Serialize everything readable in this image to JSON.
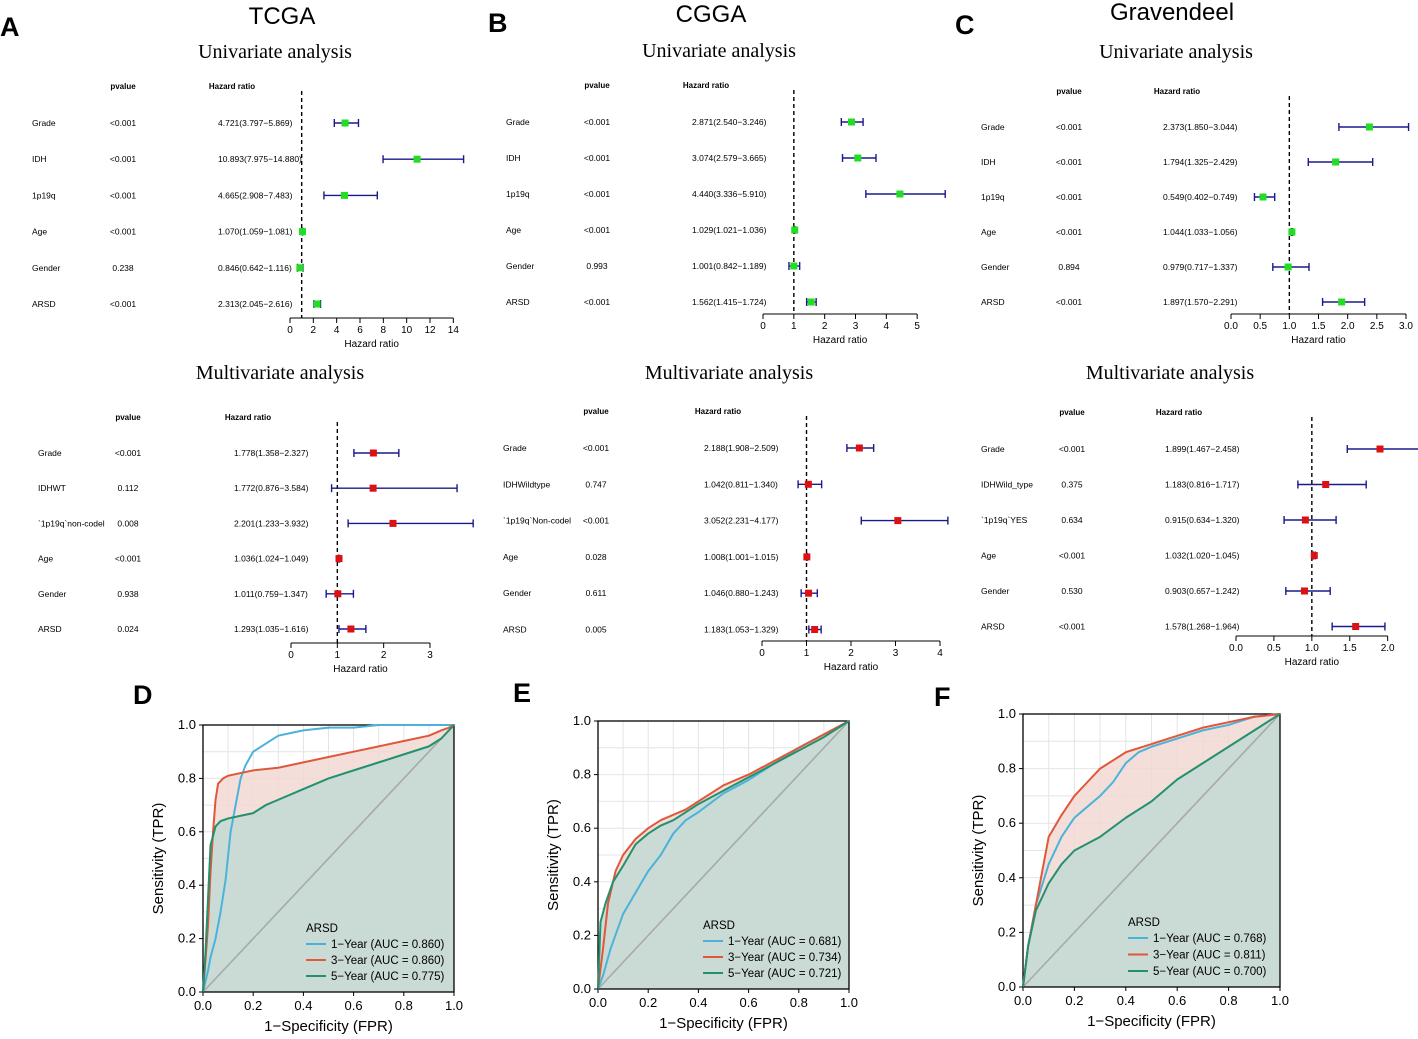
{
  "panel_letters": [
    "A",
    "B",
    "C",
    "D",
    "E",
    "F"
  ],
  "cohorts": [
    "TCGA",
    "CGGA",
    "Gravendeel"
  ],
  "section_titles": {
    "uni": "Univariate analysis",
    "multi": "Multivariate analysis"
  },
  "table_headers": {
    "pvalue": "pvalue",
    "hr": "Hazard ratio"
  },
  "axis_label": "Hazard ratio",
  "colors": {
    "uni_marker": "#22dd22",
    "multi_marker": "#dd1111",
    "ci": "#1a1a8c",
    "roc_fill": "#c5d9d4",
    "roc_band": "#f2d8d4"
  },
  "chart_data": [
    {
      "type": "forest",
      "panel": "A",
      "cohort": "TCGA",
      "analysis": "Univariate analysis",
      "xlabel": "Hazard ratio",
      "xlim": [
        0,
        15
      ],
      "xticks": [
        0,
        2,
        4,
        6,
        8,
        10,
        12,
        14
      ],
      "ref": 1,
      "rows": [
        {
          "label": "Grade",
          "p": "<0.001",
          "hr_text": "4.721(3.797−5.869)",
          "hr": 4.721,
          "lo": 3.797,
          "hi": 5.869
        },
        {
          "label": "IDH",
          "p": "<0.001",
          "hr_text": "10.893(7.975−14.880)",
          "hr": 10.893,
          "lo": 7.975,
          "hi": 14.88
        },
        {
          "label": "1p19q",
          "p": "<0.001",
          "hr_text": "4.665(2.908−7.483)",
          "hr": 4.665,
          "lo": 2.908,
          "hi": 7.483
        },
        {
          "label": "Age",
          "p": "<0.001",
          "hr_text": "1.070(1.059−1.081)",
          "hr": 1.07,
          "lo": 1.059,
          "hi": 1.081
        },
        {
          "label": "Gender",
          "p": "0.238",
          "hr_text": "0.846(0.642−1.116)",
          "hr": 0.846,
          "lo": 0.642,
          "hi": 1.116
        },
        {
          "label": "ARSD",
          "p": "<0.001",
          "hr_text": "2.313(2.045−2.616)",
          "hr": 2.313,
          "lo": 2.045,
          "hi": 2.616
        }
      ]
    },
    {
      "type": "forest",
      "panel": "B",
      "cohort": "CGGA",
      "analysis": "Univariate analysis",
      "xlabel": "Hazard ratio",
      "xlim": [
        0,
        6
      ],
      "xticks": [
        0,
        1,
        2,
        3,
        4,
        5
      ],
      "ref": 1,
      "rows": [
        {
          "label": "Grade",
          "p": "<0.001",
          "hr_text": "2.871(2.540−3.246)",
          "hr": 2.871,
          "lo": 2.54,
          "hi": 3.246
        },
        {
          "label": "IDH",
          "p": "<0.001",
          "hr_text": "3.074(2.579−3.665)",
          "hr": 3.074,
          "lo": 2.579,
          "hi": 3.665
        },
        {
          "label": "1p19q",
          "p": "<0.001",
          "hr_text": "4.440(3.336−5.910)",
          "hr": 4.44,
          "lo": 3.336,
          "hi": 5.91
        },
        {
          "label": "Age",
          "p": "<0.001",
          "hr_text": "1.029(1.021−1.036)",
          "hr": 1.029,
          "lo": 1.021,
          "hi": 1.036
        },
        {
          "label": "Gender",
          "p": "0.993",
          "hr_text": "1.001(0.842−1.189)",
          "hr": 1.001,
          "lo": 0.842,
          "hi": 1.189
        },
        {
          "label": "ARSD",
          "p": "<0.001",
          "hr_text": "1.562(1.415−1.724)",
          "hr": 1.562,
          "lo": 1.415,
          "hi": 1.724
        }
      ]
    },
    {
      "type": "forest",
      "panel": "C",
      "cohort": "Gravendeel",
      "analysis": "Univariate analysis",
      "xlabel": "Hazard ratio",
      "xlim": [
        0,
        3
      ],
      "xticks": [
        0,
        0.5,
        1,
        1.5,
        2,
        2.5,
        3
      ],
      "xtick_labels": [
        "0.0",
        "0.5",
        "1.0",
        "1.5",
        "2.0",
        "2.5",
        "3.0"
      ],
      "ref": 1,
      "rows": [
        {
          "label": "Grade",
          "p": "<0.001",
          "hr_text": "2.373(1.850−3.044)",
          "hr": 2.373,
          "lo": 1.85,
          "hi": 3.044
        },
        {
          "label": "IDH",
          "p": "<0.001",
          "hr_text": "1.794(1.325−2.429)",
          "hr": 1.794,
          "lo": 1.325,
          "hi": 2.429
        },
        {
          "label": "1p19q",
          "p": "<0.001",
          "hr_text": "0.549(0.402−0.749)",
          "hr": 0.549,
          "lo": 0.402,
          "hi": 0.749
        },
        {
          "label": "Age",
          "p": "<0.001",
          "hr_text": "1.044(1.033−1.056)",
          "hr": 1.044,
          "lo": 1.033,
          "hi": 1.056
        },
        {
          "label": "Gender",
          "p": "0.894",
          "hr_text": "0.979(0.717−1.337)",
          "hr": 0.979,
          "lo": 0.717,
          "hi": 1.337
        },
        {
          "label": "ARSD",
          "p": "<0.001",
          "hr_text": "1.897(1.570−2.291)",
          "hr": 1.897,
          "lo": 1.57,
          "hi": 2.291
        }
      ]
    },
    {
      "type": "forest",
      "panel": "A",
      "cohort": "TCGA",
      "analysis": "Multivariate analysis",
      "xlabel": "Hazard ratio",
      "xlim": [
        0,
        3
      ],
      "xticks": [
        0,
        1,
        2,
        3
      ],
      "ref": 1,
      "rows": [
        {
          "label": "Grade",
          "p": "<0.001",
          "hr_text": "1.778(1.358−2.327)",
          "hr": 1.778,
          "lo": 1.358,
          "hi": 2.327
        },
        {
          "label": "IDHWT",
          "p": "0.112",
          "hr_text": "1.772(0.876−3.584)",
          "hr": 1.772,
          "lo": 0.876,
          "hi": 3.584
        },
        {
          "label": "`1p19q`non-codel",
          "p": "0.008",
          "hr_text": "2.201(1.233−3.932)",
          "hr": 2.201,
          "lo": 1.233,
          "hi": 3.932
        },
        {
          "label": "Age",
          "p": "<0.001",
          "hr_text": "1.036(1.024−1.049)",
          "hr": 1.036,
          "lo": 1.024,
          "hi": 1.049
        },
        {
          "label": "Gender",
          "p": "0.938",
          "hr_text": "1.011(0.759−1.347)",
          "hr": 1.011,
          "lo": 0.759,
          "hi": 1.347
        },
        {
          "label": "ARSD",
          "p": "0.024",
          "hr_text": "1.293(1.035−1.616)",
          "hr": 1.293,
          "lo": 1.035,
          "hi": 1.616
        }
      ]
    },
    {
      "type": "forest",
      "panel": "B",
      "cohort": "CGGA",
      "analysis": "Multivariate analysis",
      "xlabel": "Hazard ratio",
      "xlim": [
        0,
        4
      ],
      "xticks": [
        0,
        1,
        2,
        3,
        4
      ],
      "ref": 1,
      "rows": [
        {
          "label": "Grade",
          "p": "<0.001",
          "hr_text": "2.188(1.908−2.509)",
          "hr": 2.188,
          "lo": 1.908,
          "hi": 2.509
        },
        {
          "label": "IDHWildtype",
          "p": "0.747",
          "hr_text": "1.042(0.811−1.340)",
          "hr": 1.042,
          "lo": 0.811,
          "hi": 1.34
        },
        {
          "label": "`1p19q`Non-codel",
          "p": "<0.001",
          "hr_text": "3.052(2.231−4.177)",
          "hr": 3.052,
          "lo": 2.231,
          "hi": 4.177
        },
        {
          "label": "Age",
          "p": "0.028",
          "hr_text": "1.008(1.001−1.015)",
          "hr": 1.008,
          "lo": 1.001,
          "hi": 1.015
        },
        {
          "label": "Gender",
          "p": "0.611",
          "hr_text": "1.046(0.880−1.243)",
          "hr": 1.046,
          "lo": 0.88,
          "hi": 1.243
        },
        {
          "label": "ARSD",
          "p": "0.005",
          "hr_text": "1.183(1.053−1.329)",
          "hr": 1.183,
          "lo": 1.053,
          "hi": 1.329
        }
      ]
    },
    {
      "type": "forest",
      "panel": "C",
      "cohort": "Gravendeel",
      "analysis": "Multivariate analysis",
      "xlabel": "Hazard ratio",
      "xlim": [
        0,
        2.4
      ],
      "xticks": [
        0,
        0.5,
        1,
        1.5,
        2
      ],
      "xtick_labels": [
        "0.0",
        "0.5",
        "1.0",
        "1.5",
        "2.0"
      ],
      "ref": 1,
      "rows": [
        {
          "label": "Grade",
          "p": "<0.001",
          "hr_text": "1.899(1.467−2.458)",
          "hr": 1.899,
          "lo": 1.467,
          "hi": 2.458
        },
        {
          "label": "IDHWild_type",
          "p": "0.375",
          "hr_text": "1.183(0.816−1.717)",
          "hr": 1.183,
          "lo": 0.816,
          "hi": 1.717
        },
        {
          "label": "`1p19q`YES",
          "p": "0.634",
          "hr_text": "0.915(0.634−1.320)",
          "hr": 0.915,
          "lo": 0.634,
          "hi": 1.32
        },
        {
          "label": "Age",
          "p": "<0.001",
          "hr_text": "1.032(1.020−1.045)",
          "hr": 1.032,
          "lo": 1.02,
          "hi": 1.045
        },
        {
          "label": "Gender",
          "p": "0.530",
          "hr_text": "0.903(0.657−1.242)",
          "hr": 0.903,
          "lo": 0.657,
          "hi": 1.242
        },
        {
          "label": "ARSD",
          "p": "<0.001",
          "hr_text": "1.578(1.268−1.964)",
          "hr": 1.578,
          "lo": 1.268,
          "hi": 1.964
        }
      ]
    },
    {
      "type": "roc",
      "panel": "D",
      "cohort": "TCGA",
      "xlabel": "1−Specificity (FPR)",
      "ylabel": "Sensitivity (TPR)",
      "xlim": [
        0,
        1
      ],
      "ylim": [
        0,
        1
      ],
      "ticks": [
        "0.0",
        "0.2",
        "0.4",
        "0.6",
        "0.8",
        "1.0"
      ],
      "legend_title": "ARSD",
      "series": [
        {
          "name": "1−Year (AUC = 0.860)",
          "color": "#4bb3d9",
          "x": [
            0,
            0.01,
            0.02,
            0.03,
            0.05,
            0.07,
            0.09,
            0.11,
            0.13,
            0.15,
            0.17,
            0.2,
            0.25,
            0.3,
            0.35,
            0.4,
            0.5,
            0.6,
            0.7,
            0.8,
            0.9,
            0.95,
            0.98,
            1
          ],
          "y": [
            0,
            0.04,
            0.08,
            0.13,
            0.2,
            0.3,
            0.42,
            0.6,
            0.7,
            0.8,
            0.85,
            0.9,
            0.93,
            0.96,
            0.97,
            0.98,
            0.99,
            0.99,
            1,
            1,
            1,
            1,
            1,
            1
          ]
        },
        {
          "name": "3−Year (AUC = 0.860)",
          "color": "#e0573a",
          "x": [
            0,
            0.01,
            0.02,
            0.03,
            0.04,
            0.05,
            0.06,
            0.08,
            0.1,
            0.15,
            0.2,
            0.3,
            0.4,
            0.5,
            0.6,
            0.7,
            0.8,
            0.9,
            0.95,
            0.98,
            1
          ],
          "y": [
            0,
            0.12,
            0.25,
            0.45,
            0.6,
            0.72,
            0.78,
            0.8,
            0.81,
            0.82,
            0.83,
            0.84,
            0.86,
            0.88,
            0.9,
            0.92,
            0.94,
            0.96,
            0.98,
            0.99,
            1
          ]
        },
        {
          "name": "5−Year (AUC = 0.775)",
          "color": "#23906e",
          "x": [
            0,
            0.01,
            0.02,
            0.03,
            0.05,
            0.07,
            0.1,
            0.15,
            0.2,
            0.25,
            0.3,
            0.4,
            0.5,
            0.6,
            0.7,
            0.8,
            0.9,
            0.95,
            1
          ],
          "y": [
            0,
            0.15,
            0.35,
            0.55,
            0.62,
            0.64,
            0.65,
            0.66,
            0.67,
            0.7,
            0.72,
            0.76,
            0.8,
            0.83,
            0.86,
            0.89,
            0.92,
            0.95,
            1
          ]
        }
      ]
    },
    {
      "type": "roc",
      "panel": "E",
      "cohort": "CGGA",
      "xlabel": "1−Specificity (FPR)",
      "ylabel": "Sensitivity (TPR)",
      "xlim": [
        0,
        1
      ],
      "ylim": [
        0,
        1
      ],
      "ticks": [
        "0.0",
        "0.2",
        "0.4",
        "0.6",
        "0.8",
        "1.0"
      ],
      "legend_title": "ARSD",
      "series": [
        {
          "name": "1−Year (AUC = 0.681)",
          "color": "#4bb3d9",
          "x": [
            0,
            0.02,
            0.05,
            0.1,
            0.15,
            0.2,
            0.25,
            0.3,
            0.35,
            0.4,
            0.5,
            0.6,
            0.7,
            0.8,
            0.9,
            1
          ],
          "y": [
            0,
            0.05,
            0.15,
            0.28,
            0.36,
            0.44,
            0.5,
            0.58,
            0.63,
            0.66,
            0.73,
            0.78,
            0.84,
            0.9,
            0.95,
            1
          ]
        },
        {
          "name": "3−Year (AUC = 0.734)",
          "color": "#e0573a",
          "x": [
            0,
            0.02,
            0.04,
            0.07,
            0.1,
            0.15,
            0.2,
            0.25,
            0.3,
            0.35,
            0.4,
            0.5,
            0.6,
            0.7,
            0.8,
            0.9,
            1
          ],
          "y": [
            0,
            0.15,
            0.32,
            0.44,
            0.5,
            0.56,
            0.6,
            0.63,
            0.65,
            0.67,
            0.7,
            0.76,
            0.8,
            0.85,
            0.9,
            0.95,
            1
          ]
        },
        {
          "name": "5−Year (AUC = 0.721)",
          "color": "#23906e",
          "x": [
            0,
            0.01,
            0.03,
            0.06,
            0.1,
            0.15,
            0.2,
            0.25,
            0.3,
            0.4,
            0.5,
            0.6,
            0.7,
            0.8,
            0.9,
            1
          ],
          "y": [
            0,
            0.25,
            0.32,
            0.4,
            0.46,
            0.54,
            0.58,
            0.61,
            0.63,
            0.69,
            0.74,
            0.79,
            0.84,
            0.89,
            0.94,
            1
          ]
        }
      ]
    },
    {
      "type": "roc",
      "panel": "F",
      "cohort": "Gravendeel",
      "xlabel": "1−Specificity (FPR)",
      "ylabel": "Sensitivity (TPR)",
      "xlim": [
        0,
        1
      ],
      "ylim": [
        0,
        1
      ],
      "ticks": [
        "0.0",
        "0.2",
        "0.4",
        "0.6",
        "0.8",
        "1.0"
      ],
      "legend_title": "ARSD",
      "series": [
        {
          "name": "1−Year (AUC = 0.768)",
          "color": "#4bb3d9",
          "x": [
            0,
            0.02,
            0.05,
            0.1,
            0.15,
            0.2,
            0.25,
            0.3,
            0.35,
            0.4,
            0.45,
            0.5,
            0.6,
            0.7,
            0.8,
            0.9,
            1
          ],
          "y": [
            0,
            0.15,
            0.3,
            0.45,
            0.55,
            0.62,
            0.66,
            0.7,
            0.75,
            0.82,
            0.86,
            0.88,
            0.91,
            0.94,
            0.96,
            0.99,
            1
          ]
        },
        {
          "name": "3−Year (AUC = 0.811)",
          "color": "#e0573a",
          "x": [
            0,
            0.02,
            0.05,
            0.08,
            0.1,
            0.15,
            0.2,
            0.25,
            0.3,
            0.35,
            0.4,
            0.5,
            0.6,
            0.7,
            0.8,
            0.9,
            1
          ],
          "y": [
            0,
            0.15,
            0.3,
            0.45,
            0.55,
            0.63,
            0.7,
            0.75,
            0.8,
            0.83,
            0.86,
            0.89,
            0.92,
            0.95,
            0.97,
            0.99,
            1
          ]
        },
        {
          "name": "5−Year (AUC = 0.700)",
          "color": "#23906e",
          "x": [
            0,
            0.02,
            0.05,
            0.1,
            0.15,
            0.2,
            0.3,
            0.4,
            0.5,
            0.6,
            0.7,
            0.8,
            0.9,
            1
          ],
          "y": [
            0,
            0.15,
            0.28,
            0.38,
            0.45,
            0.5,
            0.55,
            0.62,
            0.68,
            0.76,
            0.82,
            0.88,
            0.94,
            1
          ]
        }
      ]
    }
  ]
}
